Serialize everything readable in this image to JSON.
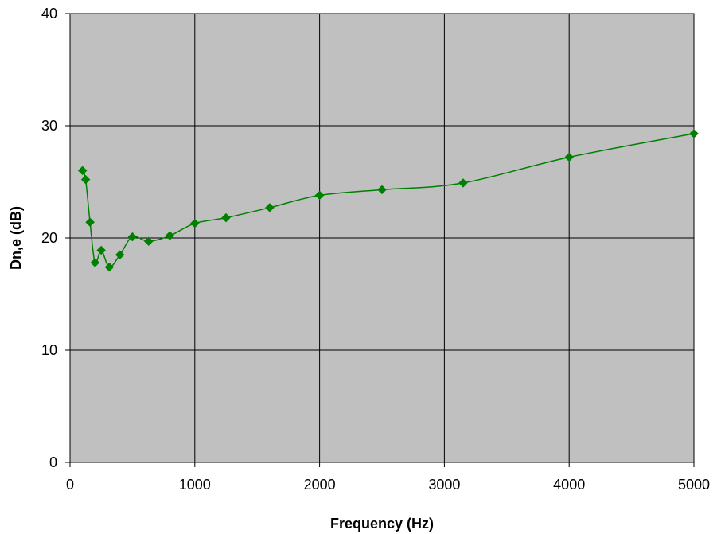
{
  "chart_data": {
    "type": "scatter",
    "title": "",
    "xlabel": "Frequency (Hz)",
    "ylabel": "Dn,e (dB)",
    "xlim": [
      0,
      5000
    ],
    "ylim": [
      0,
      40
    ],
    "xticks": [
      0,
      1000,
      2000,
      3000,
      4000,
      5000
    ],
    "yticks": [
      0,
      10,
      20,
      30,
      40
    ],
    "grid": true,
    "legend": "none",
    "plot_background": "#c0c0c0",
    "series": [
      {
        "color": "#008000",
        "marker": "diamond",
        "line": "smooth",
        "x": [
          100,
          125,
          160,
          200,
          250,
          315,
          400,
          500,
          630,
          800,
          1000,
          1250,
          1600,
          2000,
          2500,
          3150,
          4000,
          5000
        ],
        "y": [
          26.0,
          25.2,
          21.4,
          17.8,
          18.9,
          17.4,
          18.5,
          20.1,
          19.7,
          20.2,
          21.3,
          21.8,
          22.7,
          23.8,
          24.3,
          24.9,
          27.2,
          29.3
        ]
      }
    ]
  }
}
